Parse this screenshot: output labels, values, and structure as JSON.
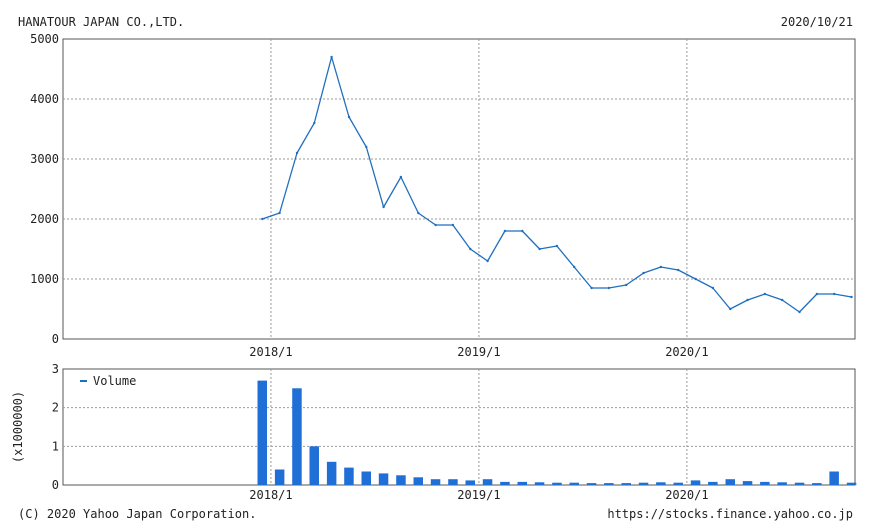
{
  "header": {
    "company": "HANATOUR JAPAN CO.,LTD.",
    "date": "2020/10/21"
  },
  "footer": {
    "copyright": "(C) 2020 Yahoo Japan Corporation.",
    "url": "https://stocks.finance.yahoo.co.jp"
  },
  "colors": {
    "line": "#1f6fbf",
    "bar": "#1f6fd6",
    "grid": "#9a9a9a"
  },
  "chart_data": [
    {
      "type": "line",
      "title": "HANATOUR JAPAN CO.,LTD.",
      "x_tick_labels": [
        "2018/1",
        "2019/1",
        "2020/1"
      ],
      "x_range": [
        "2017/01",
        "2020/10"
      ],
      "ylim": [
        0,
        5000
      ],
      "y_ticks": [
        0,
        1000,
        2000,
        3000,
        4000,
        5000
      ],
      "y_tick_labels": [
        "0",
        "1000",
        "2000",
        "3000",
        "4000",
        "5000"
      ],
      "grid": true,
      "series": [
        {
          "x": [
            "2017/12",
            "2018/01",
            "2018/02",
            "2018/03",
            "2018/04",
            "2018/05",
            "2018/06",
            "2018/07",
            "2018/08",
            "2018/09",
            "2018/10",
            "2018/11",
            "2018/12",
            "2019/01",
            "2019/02",
            "2019/03",
            "2019/04",
            "2019/05",
            "2019/06",
            "2019/07",
            "2019/08",
            "2019/09",
            "2019/10",
            "2019/11",
            "2019/12",
            "2020/01",
            "2020/02",
            "2020/03",
            "2020/04",
            "2020/05",
            "2020/06",
            "2020/07",
            "2020/08",
            "2020/09",
            "2020/10"
          ],
          "values": [
            2000,
            2100,
            3100,
            3600,
            4700,
            3700,
            3200,
            2200,
            2700,
            2100,
            1900,
            1900,
            1500,
            1300,
            1800,
            1800,
            1500,
            1550,
            1200,
            850,
            850,
            900,
            1100,
            1200,
            1150,
            1000,
            850,
            500,
            650,
            750,
            650,
            450,
            750,
            750,
            700
          ]
        }
      ]
    },
    {
      "type": "bar",
      "legend": [
        "Volume"
      ],
      "legend_position": "top-left",
      "ylabel": "(x1000000)",
      "x_tick_labels": [
        "2018/1",
        "2019/1",
        "2020/1"
      ],
      "ylim": [
        0,
        3
      ],
      "y_ticks": [
        0,
        1,
        2,
        3
      ],
      "y_tick_labels": [
        "0",
        "1",
        "2",
        "3"
      ],
      "grid": true,
      "series": [
        {
          "name": "Volume",
          "x": [
            "2017/12",
            "2018/01",
            "2018/02",
            "2018/03",
            "2018/04",
            "2018/05",
            "2018/06",
            "2018/07",
            "2018/08",
            "2018/09",
            "2018/10",
            "2018/11",
            "2018/12",
            "2019/01",
            "2019/02",
            "2019/03",
            "2019/04",
            "2019/05",
            "2019/06",
            "2019/07",
            "2019/08",
            "2019/09",
            "2019/10",
            "2019/11",
            "2019/12",
            "2020/01",
            "2020/02",
            "2020/03",
            "2020/04",
            "2020/05",
            "2020/06",
            "2020/07",
            "2020/08",
            "2020/09",
            "2020/10"
          ],
          "values": [
            2.7,
            0.4,
            2.5,
            1.0,
            0.6,
            0.45,
            0.35,
            0.3,
            0.25,
            0.2,
            0.15,
            0.15,
            0.12,
            0.15,
            0.08,
            0.08,
            0.07,
            0.06,
            0.06,
            0.05,
            0.05,
            0.05,
            0.06,
            0.07,
            0.06,
            0.12,
            0.08,
            0.15,
            0.1,
            0.08,
            0.07,
            0.06,
            0.05,
            0.35,
            0.06
          ]
        }
      ]
    }
  ]
}
